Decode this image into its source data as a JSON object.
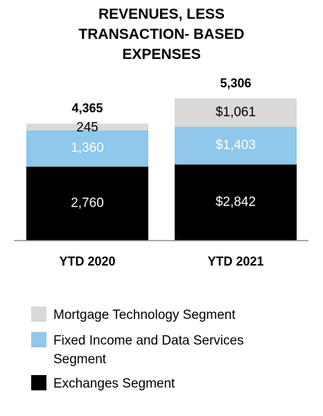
{
  "chart_data": {
    "type": "bar",
    "stacked": true,
    "title": "REVENUES, LESS TRANSACTION- BASED EXPENSES",
    "categories": [
      "YTD 2020",
      "YTD 2021"
    ],
    "series": [
      {
        "name": "Exchanges Segment",
        "color": "#000000",
        "label_color": "#ffffff",
        "values": [
          2760,
          2842
        ],
        "value_labels": [
          "2,760",
          "$2,842"
        ]
      },
      {
        "name": "Fixed Income and Data Services Segment",
        "color": "#8ec8ea",
        "label_color": "#ffffff",
        "values": [
          1360,
          1403
        ],
        "value_labels": [
          "1,360",
          "$1,403"
        ]
      },
      {
        "name": "Mortgage Technology Segment",
        "color": "#d9d9d9",
        "label_color": "#000000",
        "values": [
          245,
          1061
        ],
        "value_labels": [
          "245",
          "$1,061"
        ]
      }
    ],
    "totals": [
      4365,
      5306
    ],
    "total_labels": [
      "4,365",
      "5,306"
    ]
  }
}
